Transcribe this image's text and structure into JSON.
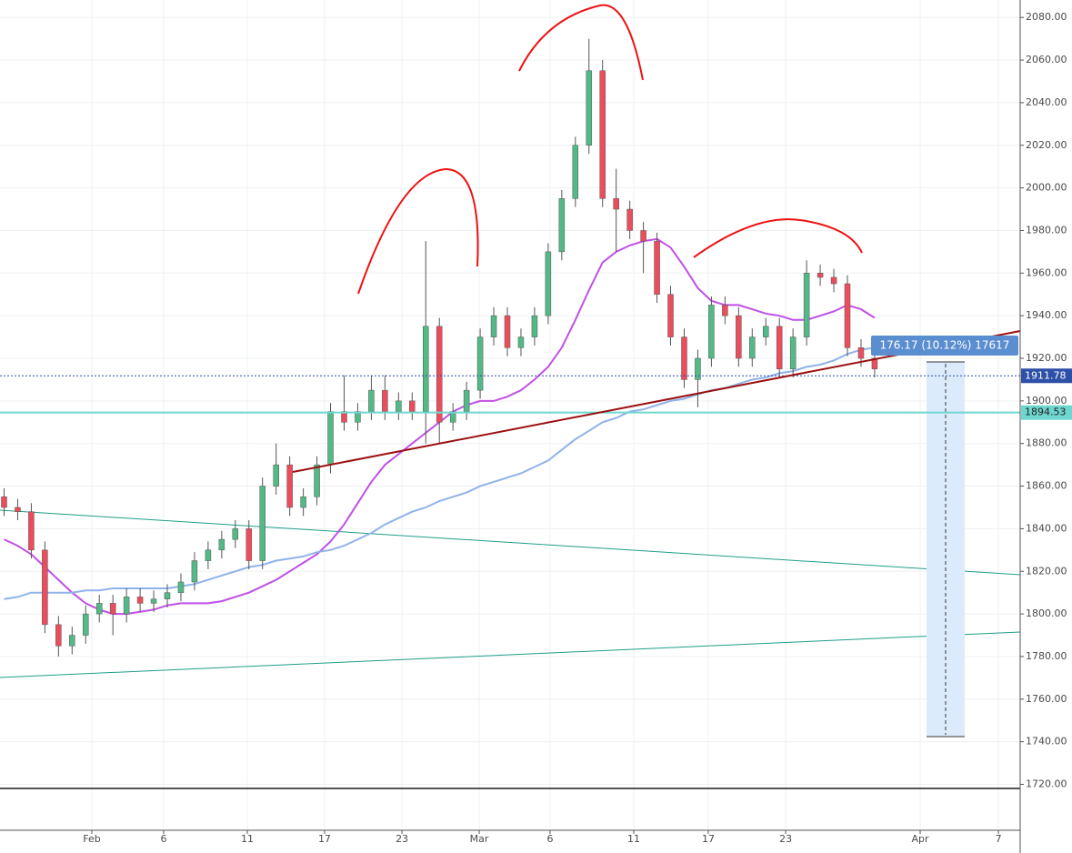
{
  "chart_data": {
    "type": "candlestick",
    "open": [
      1855,
      1850,
      1848,
      1830,
      1795,
      1785,
      1790,
      1800,
      1805,
      1800,
      1808,
      1805,
      1807,
      1810,
      1815,
      1825,
      1830,
      1835,
      1840,
      1825,
      1860,
      1870,
      1850,
      1855,
      1870,
      1895,
      1890,
      1895,
      1905,
      1895,
      1900,
      1895,
      1935,
      1890,
      1895,
      1905,
      1930,
      1940,
      1925,
      1930,
      1940,
      1970,
      1995,
      2020,
      2055,
      1995,
      1990,
      1980,
      1975,
      1950,
      1930,
      1910,
      1920,
      1945,
      1940,
      1920,
      1930,
      1935,
      1915,
      1930,
      1960,
      1958,
      1955,
      1925,
      1920
    ],
    "high": [
      1859,
      1854,
      1852,
      1834,
      1799,
      1794,
      1804,
      1809,
      1809,
      1812,
      1812,
      1811,
      1814,
      1819,
      1829,
      1834,
      1839,
      1844,
      1844,
      1864,
      1880,
      1874,
      1859,
      1874,
      1899,
      1912,
      1899,
      1912,
      1912,
      1904,
      1904,
      1975,
      1939,
      1899,
      1909,
      1934,
      1944,
      1944,
      1934,
      1944,
      1974,
      1999,
      2024,
      2070,
      2060,
      2009,
      1994,
      1984,
      1979,
      1954,
      1934,
      1924,
      1949,
      1949,
      1944,
      1934,
      1939,
      1939,
      1934,
      1966,
      1964,
      1962,
      1959,
      1929,
      1924
    ],
    "low": [
      1846,
      1844,
      1826,
      1791,
      1780,
      1781,
      1786,
      1796,
      1790,
      1796,
      1801,
      1801,
      1803,
      1806,
      1811,
      1821,
      1826,
      1831,
      1821,
      1821,
      1856,
      1846,
      1846,
      1851,
      1866,
      1886,
      1886,
      1891,
      1891,
      1891,
      1891,
      1880,
      1880,
      1886,
      1891,
      1901,
      1926,
      1921,
      1921,
      1926,
      1936,
      1966,
      1991,
      2016,
      1991,
      1970,
      1976,
      1960,
      1946,
      1926,
      1906,
      1897,
      1916,
      1936,
      1916,
      1916,
      1926,
      1911,
      1911,
      1926,
      1954,
      1951,
      1921,
      1916,
      1911
    ],
    "close": [
      1850,
      1848,
      1830,
      1795,
      1785,
      1790,
      1800,
      1805,
      1800,
      1808,
      1805,
      1807,
      1810,
      1815,
      1825,
      1830,
      1835,
      1840,
      1825,
      1860,
      1870,
      1850,
      1855,
      1870,
      1895,
      1890,
      1895,
      1905,
      1895,
      1900,
      1895,
      1935,
      1890,
      1895,
      1905,
      1930,
      1940,
      1925,
      1930,
      1940,
      1970,
      1995,
      2020,
      2055,
      1995,
      1990,
      1980,
      1975,
      1950,
      1930,
      1910,
      1920,
      1945,
      1940,
      1920,
      1930,
      1935,
      1915,
      1930,
      1960,
      1958,
      1955,
      1925,
      1920,
      1915
    ],
    "up_color": "#53b987",
    "down_color": "#eb4d5c",
    "series": [
      {
        "color": "#c04fe6",
        "values": [
          1835,
          1832,
          1828,
          1822,
          1816,
          1810,
          1805,
          1802,
          1800,
          1800,
          1801,
          1802,
          1804,
          1805,
          1805,
          1805,
          1806,
          1808,
          1810,
          1813,
          1816,
          1820,
          1824,
          1828,
          1834,
          1842,
          1852,
          1862,
          1870,
          1875,
          1880,
          1885,
          1890,
          1895,
          1898,
          1900,
          1900,
          1902,
          1905,
          1910,
          1916,
          1925,
          1938,
          1952,
          1965,
          1970,
          1973,
          1975,
          1976,
          1972,
          1963,
          1953,
          1947,
          1945,
          1945,
          1943,
          1941,
          1940,
          1938,
          1938,
          1940,
          1942,
          1945,
          1943,
          1939
        ]
      },
      {
        "color": "#8fb2ea",
        "values": [
          1807,
          1808,
          1810,
          1810,
          1810,
          1810,
          1811,
          1811,
          1812,
          1812,
          1812,
          1812,
          1812,
          1813,
          1814,
          1816,
          1818,
          1820,
          1822,
          1823,
          1825,
          1826,
          1827,
          1829,
          1830,
          1832,
          1835,
          1838,
          1842,
          1845,
          1848,
          1850,
          1853,
          1855,
          1857,
          1860,
          1862,
          1864,
          1866,
          1869,
          1872,
          1877,
          1882,
          1886,
          1890,
          1892,
          1895,
          1896,
          1898,
          1900,
          1901,
          1903,
          1905,
          1906,
          1908,
          1910,
          1911,
          1913,
          1914,
          1916,
          1917,
          1919,
          1922,
          1924,
          1925
        ]
      }
    ],
    "xlim": [
      -0.3,
      74.7
    ],
    "xticks": [
      {
        "value": 6.45,
        "label": "Feb"
      },
      {
        "value": 11.73,
        "label": "6"
      },
      {
        "value": 17.88,
        "label": "11"
      },
      {
        "value": 23.56,
        "label": "17"
      },
      {
        "value": 29.25,
        "label": "23"
      },
      {
        "value": 34.93,
        "label": "Mar"
      },
      {
        "value": 40.14,
        "label": "6"
      },
      {
        "value": 46.29,
        "label": "11"
      },
      {
        "value": 51.77,
        "label": "17"
      },
      {
        "value": 57.46,
        "label": "23"
      },
      {
        "value": 67.35,
        "label": "Apr"
      },
      {
        "value": 73.1,
        "label": "7"
      }
    ],
    "ylim": [
      1713.6,
      2088.2
    ],
    "yticks": [
      {
        "value": 1720,
        "label": "1720.00"
      },
      {
        "value": 1740,
        "label": "1740.00"
      },
      {
        "value": 1760,
        "label": "1760.00"
      },
      {
        "value": 1780,
        "label": "1780.00"
      },
      {
        "value": 1800,
        "label": "1800.00"
      },
      {
        "value": 1820,
        "label": "1820.00"
      },
      {
        "value": 1840,
        "label": "1840.00"
      },
      {
        "value": 1860,
        "label": "1860.00"
      },
      {
        "value": 1880,
        "label": "1880.00"
      },
      {
        "value": 1900,
        "label": "1900.00"
      },
      {
        "value": 1920,
        "label": "1920.00"
      },
      {
        "value": 1940,
        "label": "1940.00"
      },
      {
        "value": 1960,
        "label": "1960.00"
      },
      {
        "value": 1980,
        "label": "1980.00"
      },
      {
        "value": 2000,
        "label": "2000.00"
      },
      {
        "value": 2020,
        "label": "2020.00"
      },
      {
        "value": 2040,
        "label": "2040.00"
      },
      {
        "value": 2060,
        "label": "2060.00"
      },
      {
        "value": 2080,
        "label": "2080.00"
      }
    ],
    "price_lines": [
      {
        "value": 1911.78,
        "label": "1911.78",
        "color": "#2e4fa8"
      },
      {
        "value": 1894.53,
        "label": "1894.53",
        "color": "#6fd6cf"
      }
    ],
    "measure_label": "176.17 (10.12%) 17617",
    "grid": true
  }
}
